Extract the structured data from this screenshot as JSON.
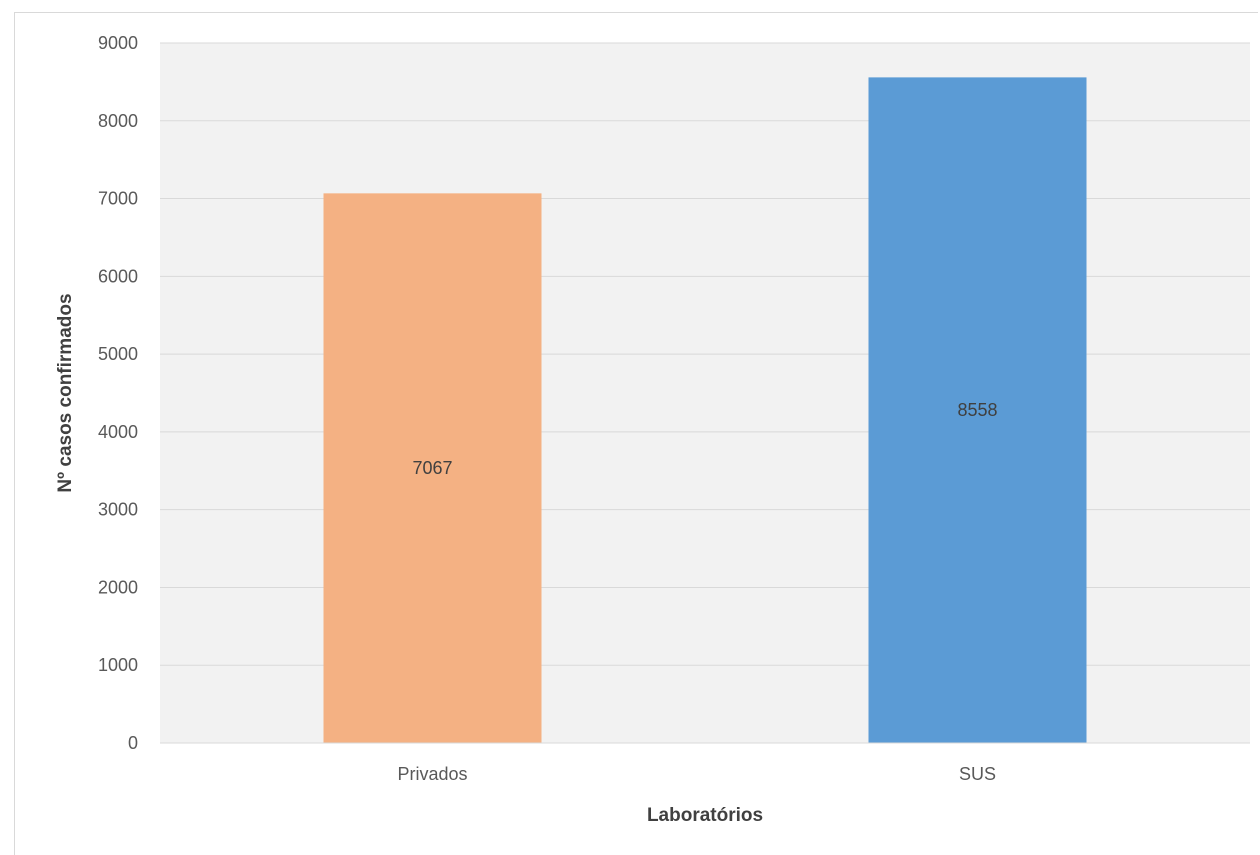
{
  "chart_data": {
    "type": "bar",
    "title": "",
    "xlabel": "Laboratórios",
    "ylabel": "Nº casos confirmados",
    "categories": [
      "Privados",
      "SUS"
    ],
    "values": [
      7067,
      8558
    ],
    "data_labels": [
      "7067",
      "8558"
    ],
    "bar_colors": [
      "#f4b183",
      "#5b9bd5"
    ],
    "ylim": [
      0,
      9000
    ],
    "yticks": [
      0,
      1000,
      2000,
      3000,
      4000,
      5000,
      6000,
      7000,
      8000,
      9000
    ],
    "ytick_labels": [
      "0",
      "1000",
      "2000",
      "3000",
      "4000",
      "5000",
      "6000",
      "7000",
      "8000",
      "9000"
    ],
    "grid": true,
    "plot_background": "#f2f2f2",
    "gridline_color": "#d9d9d9",
    "legend": "none"
  }
}
